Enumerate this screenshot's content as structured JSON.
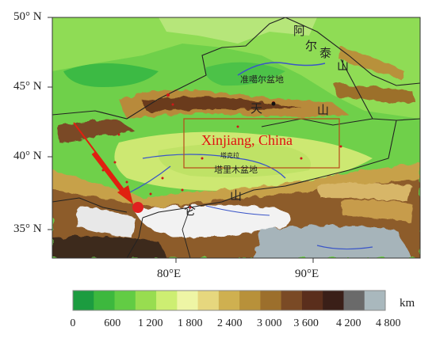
{
  "map": {
    "latitude_labels": [
      "50° N",
      "45° N",
      "40° N",
      "35° N"
    ],
    "longitude_labels": [
      "80°E",
      "90°E"
    ],
    "region_label": "Xinjiang, China",
    "place_labels": {
      "altay": [
        "阿",
        "尔",
        "泰",
        "山"
      ],
      "tianshan": [
        "天",
        "山"
      ],
      "kunlun": [
        "仑",
        "山"
      ],
      "junggar_basin": "准噶尔盆地",
      "tarim_basin": "塔里木盆地",
      "desert": "塔克拉"
    }
  },
  "legend": {
    "unit": "km",
    "colors": [
      "#1c9c40",
      "#3db83e",
      "#62cc44",
      "#98dd50",
      "#cdee72",
      "#eef5a5",
      "#e6d77e",
      "#cfb050",
      "#b8913a",
      "#9c6f2c",
      "#7a4a25",
      "#5a2e1c",
      "#3a1f18",
      "#6a6a6a",
      "#a9b8bd"
    ],
    "ticks": [
      "0",
      "600",
      "1 200",
      "1 800",
      "2 400",
      "3 000",
      "3  600",
      "4 200",
      "4 800"
    ]
  }
}
